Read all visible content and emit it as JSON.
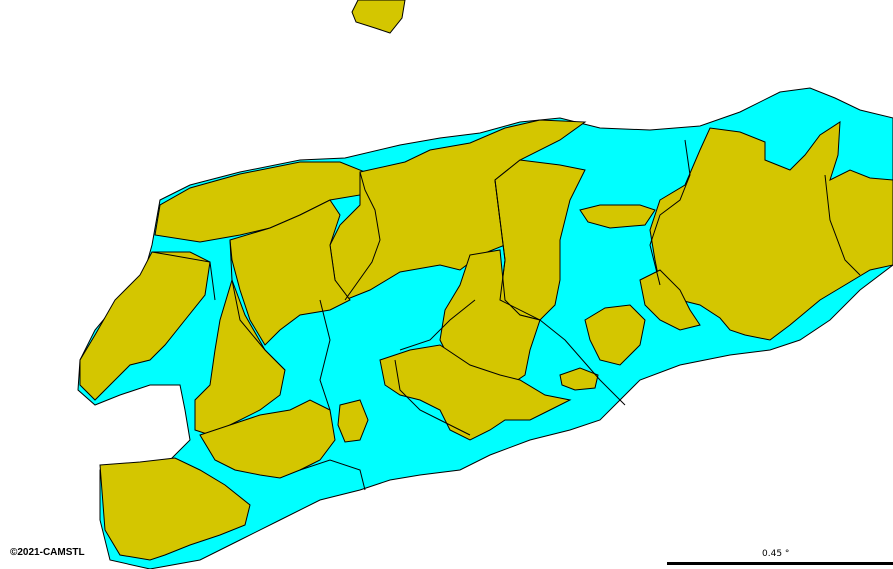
{
  "map": {
    "colors": {
      "background": "#ffffff",
      "class_a": "#00ffff",
      "class_b": "#d4c600",
      "outline": "#000000"
    }
  },
  "attribution": {
    "copyright": "©2021-CAMSTL"
  },
  "scale": {
    "label": "0.45 °"
  }
}
